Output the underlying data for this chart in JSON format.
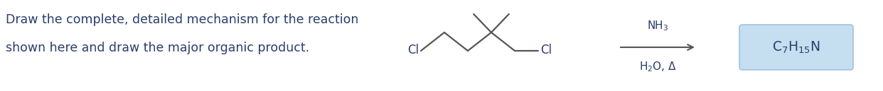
{
  "bg_color": "#ffffff",
  "text_color": "#2b3d6b",
  "question_line1": "Draw the complete, detailed mechanism for the reaction",
  "question_line2": "shown here and draw the major organic product.",
  "question_fontsize": 12.5,
  "molecule_color": "#555555",
  "molecule_cl_color": "#2b3d6b",
  "arrow_color": "#555555",
  "reagent_color": "#2b3d6b",
  "product_color": "#2b3d6b",
  "product_box_facecolor": "#c5dff0",
  "product_box_edgecolor": "#a0c4de",
  "reagent_above": "NH$_3$",
  "reagent_below": "H$_2$O, Δ",
  "product_text": "C$_7$H$_{15}$N",
  "reagent_fontsize": 11.0,
  "product_fontsize": 13.5,
  "cl_fontsize": 12.0
}
